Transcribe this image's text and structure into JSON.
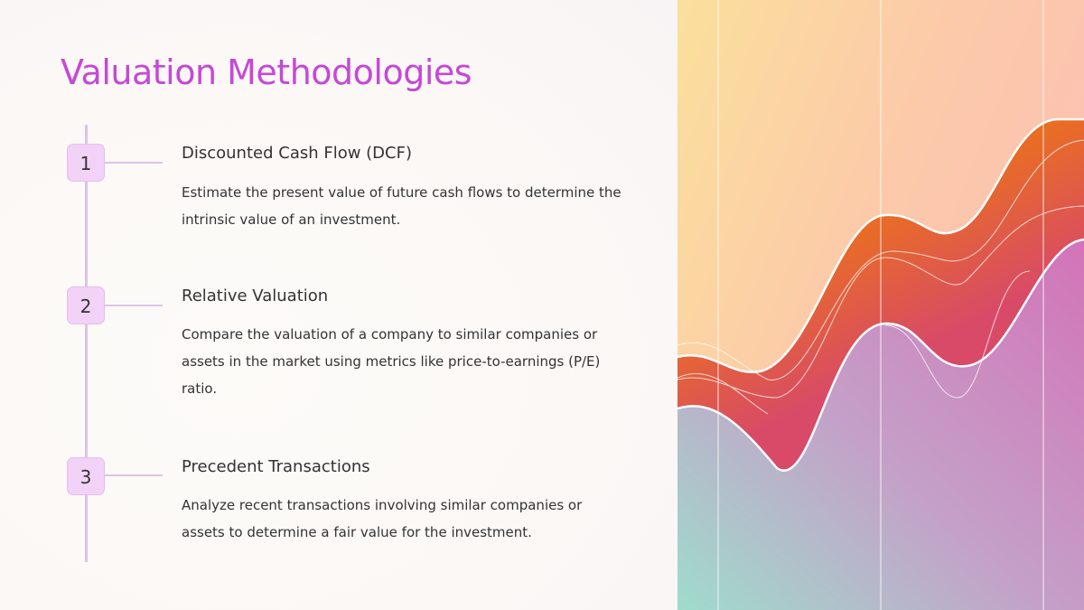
{
  "slide": {
    "title": "Valuation Methodologies",
    "steps": [
      {
        "number": "1",
        "heading": "Discounted Cash Flow (DCF)",
        "description": "Estimate the present value of future cash flows to determine the intrinsic value of an investment."
      },
      {
        "number": "2",
        "heading": "Relative Valuation",
        "description": "Compare the valuation of a company to similar companies or assets in the market using metrics like price-to-earnings (P/E) ratio."
      },
      {
        "number": "3",
        "heading": "Precedent Transactions",
        "description": "Analyze recent transactions involving similar companies or assets to determine a fair value for the investment."
      }
    ],
    "colors": {
      "title": "#c549d6",
      "step_badge": "#f2d3f7",
      "timeline": "#dcc4e6",
      "wave_orange": "#ef7a0a",
      "wave_magenta": "#d84a68"
    }
  }
}
